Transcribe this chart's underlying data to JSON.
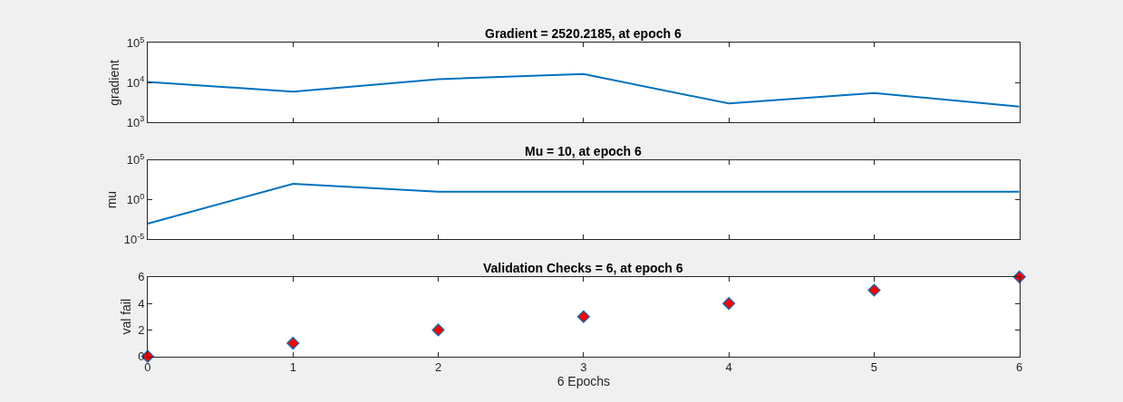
{
  "chart_data": [
    {
      "type": "line",
      "title": "Gradient = 2520.2185, at epoch 6",
      "ylabel": "gradient",
      "x": [
        0,
        1,
        2,
        3,
        4,
        5,
        6
      ],
      "log": "y",
      "tick_labels": "y",
      "xlim": [
        0,
        6
      ],
      "xticks": [
        0,
        1,
        2,
        3,
        4,
        5,
        6
      ],
      "ylim": [
        1000,
        100000
      ],
      "yticks": [
        {
          "value": 1000,
          "label": "10$^{3}$"
        },
        {
          "value": 10000,
          "label": "10$^{4}$"
        },
        {
          "value": 100000,
          "label": "10$^{5}$"
        }
      ],
      "series": [
        {
          "color": "#0072bd",
          "values": [
            10500,
            6000,
            12300,
            16600,
            3000,
            5500,
            2520.2185
          ]
        }
      ]
    },
    {
      "type": "line",
      "title": "Mu = 10, at epoch 6",
      "ylabel": "mu",
      "x": [
        0,
        1,
        2,
        3,
        4,
        5,
        6
      ],
      "log": "y",
      "tick_labels": "y",
      "xlim": [
        0,
        6
      ],
      "xticks": [
        0,
        1,
        2,
        3,
        4,
        5,
        6
      ],
      "ylim": [
        1e-05,
        100000
      ],
      "yticks": [
        {
          "value": 1e-05,
          "label": "10$^{-5}$"
        },
        {
          "value": 1,
          "label": "10$^{0}$"
        },
        {
          "value": 100000,
          "label": "10$^{5}$"
        }
      ],
      "series": [
        {
          "color": "#0072bd",
          "values": [
            0.001,
            100,
            10,
            10,
            10,
            10,
            10
          ]
        }
      ]
    },
    {
      "type": "scatter",
      "title": "Validation Checks = 6, at epoch 6",
      "ylabel": "val fail",
      "xlabel": "6 Epochs",
      "marker": "diamond",
      "x": [
        0,
        1,
        2,
        3,
        4,
        5,
        6
      ],
      "xlim": [
        0,
        6
      ],
      "xticks": [
        0,
        1,
        2,
        3,
        4,
        5,
        6
      ],
      "ylim": [
        0,
        6
      ],
      "yticks": [
        0,
        2,
        4,
        6
      ],
      "series": [
        {
          "color": "#ff0000",
          "values": [
            0,
            1,
            2,
            3,
            4,
            5,
            6
          ]
        }
      ]
    }
  ]
}
